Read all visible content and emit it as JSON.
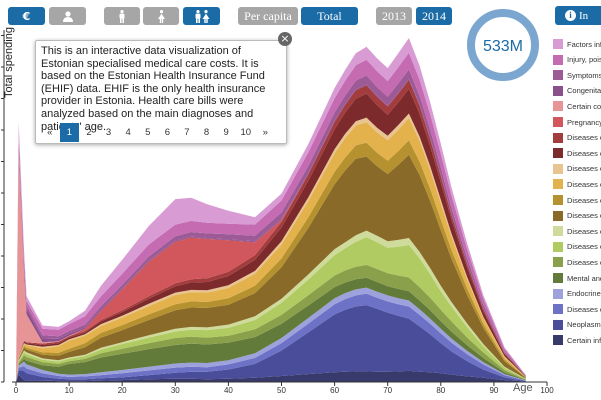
{
  "toolbar": {
    "currency_icon": "euro-icon",
    "person_icon": "user-icon",
    "male_icon": "male-icon",
    "female_icon": "female-icon",
    "both_icon": "male-female-icon",
    "per_capita_label": "Per capita",
    "total_label": "Total",
    "year_2013_label": "2013",
    "year_2014_label": "2014",
    "info_label": "In"
  },
  "total_badge": {
    "value": "533M"
  },
  "popup": {
    "text": "This is an interactive data visualization of Estonian specialised medical care costs. It is based on the Estonian Health Insurance Fund (EHIF) data. EHIF is the only health insurance provider in Estonia. Health care bills were analyzed based on the main diagnoses and patients' age.",
    "prev": "«",
    "next": "»",
    "pages": [
      "1",
      "2",
      "3",
      "4",
      "5",
      "6",
      "7",
      "8",
      "9",
      "10"
    ],
    "active_page": "1",
    "close": "×"
  },
  "legend": [
    {
      "label": "Factors infl",
      "color": "#d99bd4"
    },
    {
      "label": "Injury, pois",
      "color": "#c46bb2"
    },
    {
      "label": "Symptoms",
      "color": "#9c5a96"
    },
    {
      "label": "Congenital",
      "color": "#8a4f8c"
    },
    {
      "label": "Certain con",
      "color": "#e69496"
    },
    {
      "label": "Pregnancy,",
      "color": "#d1575c"
    },
    {
      "label": "Diseases o",
      "color": "#a33c3d"
    },
    {
      "label": "Diseases o",
      "color": "#7d2a2d"
    },
    {
      "label": "Diseases o",
      "color": "#e8c491"
    },
    {
      "label": "Diseases o",
      "color": "#e3b24d"
    },
    {
      "label": "Diseases o",
      "color": "#b5922f"
    },
    {
      "label": "Diseases o",
      "color": "#8a6a29"
    },
    {
      "label": "Diseases o",
      "color": "#cfdb9a"
    },
    {
      "label": "Diseases o",
      "color": "#b0cb62"
    },
    {
      "label": "Diseases o",
      "color": "#8ba04a"
    },
    {
      "label": "Mental and",
      "color": "#627a3a"
    },
    {
      "label": "Endocrine,",
      "color": "#9ea2dc"
    },
    {
      "label": "Diseases o",
      "color": "#6d72c7"
    },
    {
      "label": "Neoplasms",
      "color": "#4a4e9a"
    },
    {
      "label": "Certain infe",
      "color": "#373a6b"
    }
  ],
  "chart_data": {
    "type": "area",
    "stacked": true,
    "ylabel": "Total spending",
    "xlabel": "Age",
    "xlim": [
      0,
      100
    ],
    "x_ticks": [
      0,
      10,
      20,
      30,
      40,
      50,
      60,
      70,
      80,
      90,
      100
    ],
    "x": [
      0,
      0.5,
      1.5,
      2,
      5,
      8,
      10,
      13,
      16,
      20,
      25,
      30,
      33,
      36,
      40,
      45,
      50,
      55,
      60,
      62,
      64,
      66,
      68,
      70,
      72,
      74,
      76,
      78,
      80,
      82,
      85,
      88,
      92,
      96
    ],
    "series": [
      {
        "name": "Certain infe",
        "color": "#373a6b",
        "values": [
          0.0,
          1.6,
          0.4,
          0.3,
          0.3,
          0.2,
          0.2,
          0.2,
          0.3,
          0.4,
          0.6,
          0.7,
          0.7,
          0.6,
          0.7,
          0.9,
          1.3,
          1.7,
          2.1,
          2.2,
          2.3,
          2.3,
          2.2,
          2.2,
          2.3,
          2.4,
          2.2,
          2.1,
          1.9,
          1.6,
          1.2,
          0.9,
          0.4,
          0.1
        ]
      },
      {
        "name": "Neoplasms",
        "color": "#4a4e9a",
        "values": [
          0.0,
          1.0,
          2.0,
          1.6,
          0.8,
          0.5,
          0.4,
          0.4,
          0.5,
          0.6,
          0.9,
          1.3,
          1.5,
          1.6,
          2.0,
          3.0,
          5.5,
          9.0,
          12.5,
          13.4,
          14.0,
          14.3,
          13.6,
          12.8,
          12.0,
          11.3,
          9.8,
          8.2,
          6.5,
          5.0,
          3.3,
          1.8,
          0.6,
          0.1
        ]
      },
      {
        "name": "Diseases o",
        "color": "#6d72c7",
        "values": [
          0.0,
          0.5,
          1.0,
          1.0,
          0.8,
          0.6,
          0.5,
          0.6,
          0.7,
          0.9,
          1.0,
          1.1,
          1.1,
          1.0,
          1.1,
          1.3,
          1.6,
          1.9,
          2.2,
          2.3,
          2.4,
          2.5,
          2.4,
          2.4,
          2.5,
          2.6,
          2.5,
          2.3,
          2.1,
          1.9,
          1.5,
          1.1,
          0.5,
          0.1
        ]
      },
      {
        "name": "Endocrine,",
        "color": "#9ea2dc",
        "values": [
          0.0,
          0.5,
          1.0,
          0.9,
          0.7,
          0.5,
          0.5,
          0.5,
          0.6,
          0.7,
          0.8,
          0.9,
          0.9,
          0.9,
          0.9,
          1.0,
          1.1,
          1.2,
          1.3,
          1.3,
          1.3,
          1.3,
          1.3,
          1.3,
          1.3,
          1.3,
          1.2,
          1.1,
          1.0,
          0.9,
          0.7,
          0.5,
          0.2,
          0.05
        ]
      },
      {
        "name": "Mental and",
        "color": "#627a3a",
        "values": [
          0.0,
          0.3,
          0.6,
          0.8,
          1.0,
          1.5,
          2.3,
          2.6,
          3.2,
          3.5,
          3.8,
          4.0,
          4.1,
          4.0,
          3.8,
          3.5,
          3.1,
          2.7,
          2.4,
          2.3,
          2.2,
          2.1,
          2.1,
          2.0,
          2.0,
          2.0,
          1.9,
          1.8,
          1.6,
          1.5,
          1.2,
          0.9,
          0.4,
          0.1
        ]
      },
      {
        "name": "Diseases o",
        "color": "#8ba04a",
        "values": [
          0.0,
          0.3,
          0.8,
          0.8,
          0.7,
          0.6,
          0.6,
          0.7,
          0.9,
          1.1,
          1.3,
          1.5,
          1.5,
          1.5,
          1.5,
          1.7,
          1.9,
          2.2,
          2.5,
          2.6,
          2.7,
          2.8,
          2.8,
          2.8,
          2.9,
          3.0,
          2.9,
          2.7,
          2.5,
          2.2,
          1.7,
          1.2,
          0.5,
          0.1
        ]
      },
      {
        "name": "Diseases o",
        "color": "#b0cb62",
        "values": [
          0.0,
          0.3,
          0.6,
          0.6,
          0.5,
          0.5,
          0.5,
          0.6,
          0.8,
          1.0,
          1.2,
          1.4,
          1.5,
          1.6,
          1.7,
          2.0,
          2.6,
          3.4,
          4.4,
          4.8,
          5.4,
          6.0,
          5.8,
          5.5,
          6.2,
          7.0,
          6.2,
          5.1,
          4.0,
          3.2,
          2.2,
          1.3,
          0.5,
          0.1
        ]
      },
      {
        "name": "Diseases o",
        "color": "#cfdb9a",
        "values": [
          0.0,
          0.2,
          0.4,
          0.4,
          0.3,
          0.3,
          0.3,
          0.3,
          0.4,
          0.4,
          0.5,
          0.6,
          0.6,
          0.6,
          0.7,
          0.8,
          0.9,
          1.1,
          1.3,
          1.3,
          1.4,
          1.4,
          1.4,
          1.4,
          1.5,
          1.5,
          1.4,
          1.3,
          1.2,
          1.0,
          0.8,
          0.5,
          0.2,
          0.05
        ]
      },
      {
        "name": "Diseases o",
        "color": "#8a6a29",
        "values": [
          0.0,
          0.3,
          0.6,
          0.6,
          0.8,
          1.0,
          1.2,
          1.6,
          2.2,
          2.6,
          3.3,
          4.0,
          4.2,
          4.2,
          4.3,
          5.0,
          6.8,
          10.0,
          14.0,
          15.5,
          16.5,
          16.0,
          15.0,
          14.5,
          16.2,
          18.0,
          16.6,
          14.5,
          12.0,
          9.4,
          6.1,
          3.5,
          1.2,
          0.2
        ]
      },
      {
        "name": "Diseases o",
        "color": "#b5922f",
        "values": [
          0.0,
          0.2,
          0.4,
          0.4,
          0.5,
          0.6,
          0.7,
          0.9,
          1.0,
          1.1,
          1.2,
          1.3,
          1.3,
          1.3,
          1.4,
          1.6,
          1.9,
          2.3,
          2.7,
          2.8,
          2.9,
          3.0,
          2.9,
          2.9,
          3.0,
          3.1,
          2.9,
          2.6,
          2.3,
          1.9,
          1.4,
          0.9,
          0.4,
          0.1
        ]
      },
      {
        "name": "Diseases o",
        "color": "#e3b24d",
        "values": [
          0.0,
          0.2,
          0.4,
          0.5,
          0.9,
          1.4,
          1.7,
          1.6,
          1.5,
          1.6,
          1.8,
          2.0,
          2.0,
          2.0,
          2.2,
          2.6,
          3.0,
          3.5,
          4.0,
          4.2,
          4.3,
          4.4,
          4.4,
          4.4,
          4.6,
          4.8,
          4.5,
          4.0,
          3.5,
          2.8,
          2.0,
          1.2,
          0.5,
          0.1
        ]
      },
      {
        "name": "Diseases o",
        "color": "#e8c491",
        "values": [
          0.0,
          0.1,
          0.2,
          0.2,
          0.3,
          0.3,
          0.3,
          0.3,
          0.4,
          0.4,
          0.5,
          0.5,
          0.5,
          0.5,
          0.6,
          0.6,
          0.7,
          0.8,
          0.9,
          0.9,
          0.9,
          1.0,
          1.0,
          1.0,
          1.0,
          1.0,
          0.9,
          0.9,
          0.8,
          0.7,
          0.5,
          0.3,
          0.15,
          0.03
        ]
      },
      {
        "name": "Diseases o",
        "color": "#7d2a2d",
        "values": [
          0.0,
          0.1,
          0.3,
          0.3,
          0.4,
          0.4,
          0.4,
          0.4,
          0.6,
          0.8,
          1.1,
          1.4,
          1.6,
          1.8,
          2.0,
          2.4,
          3.0,
          3.6,
          4.3,
          4.6,
          4.9,
          5.2,
          4.9,
          4.5,
          4.9,
          5.3,
          4.9,
          4.3,
          3.7,
          3.0,
          2.0,
          1.2,
          0.5,
          0.1
        ]
      },
      {
        "name": "Diseases o",
        "color": "#a33c3d",
        "values": [
          0.0,
          0.1,
          0.2,
          0.2,
          0.3,
          0.3,
          0.3,
          0.3,
          0.3,
          0.4,
          0.5,
          0.6,
          0.7,
          0.8,
          0.9,
          1.0,
          1.2,
          1.4,
          1.6,
          1.7,
          1.8,
          1.8,
          1.8,
          1.8,
          1.9,
          2.0,
          1.8,
          1.6,
          1.4,
          1.1,
          0.8,
          0.5,
          0.2,
          0.05
        ]
      },
      {
        "name": "Pregnancy,",
        "color": "#d1575c",
        "values": [
          0.0,
          0.0,
          0.0,
          0.0,
          0.0,
          0.0,
          0.0,
          0.5,
          2.0,
          4.5,
          7.5,
          9.0,
          9.0,
          8.5,
          6.8,
          2.8,
          0.4,
          0.0,
          0.0,
          0.0,
          0.0,
          0.0,
          0.0,
          0.0,
          0.0,
          0.0,
          0.0,
          0.0,
          0.0,
          0.0,
          0.0,
          0.0,
          0.0,
          0.0
        ]
      },
      {
        "name": "Certain con",
        "color": "#e69496",
        "values": [
          0.0,
          44.0,
          15.0,
          6.0,
          0.3,
          0.1,
          0.1,
          0.0,
          0.0,
          0.0,
          0.0,
          0.0,
          0.0,
          0.0,
          0.0,
          0.0,
          0.0,
          0.0,
          0.0,
          0.0,
          0.0,
          0.0,
          0.0,
          0.0,
          0.0,
          0.0,
          0.0,
          0.0,
          0.0,
          0.0,
          0.0,
          0.0,
          0.0,
          0.0
        ]
      },
      {
        "name": "Congenital",
        "color": "#8a4f8c",
        "values": [
          0.0,
          2.0,
          1.6,
          1.2,
          0.8,
          0.5,
          0.4,
          0.3,
          0.3,
          0.2,
          0.2,
          0.2,
          0.2,
          0.2,
          0.2,
          0.2,
          0.2,
          0.2,
          0.2,
          0.2,
          0.2,
          0.2,
          0.2,
          0.2,
          0.2,
          0.2,
          0.2,
          0.2,
          0.2,
          0.1,
          0.1,
          0.1,
          0.05,
          0.0
        ]
      },
      {
        "name": "Symptoms",
        "color": "#9c5a96",
        "values": [
          0.0,
          0.5,
          0.7,
          0.7,
          0.7,
          0.6,
          0.6,
          0.6,
          0.7,
          0.8,
          0.9,
          1.0,
          1.0,
          1.0,
          1.1,
          1.2,
          1.4,
          1.6,
          1.8,
          1.8,
          1.9,
          1.9,
          1.9,
          1.9,
          2.0,
          2.0,
          1.9,
          1.8,
          1.6,
          1.4,
          1.1,
          0.8,
          0.3,
          0.05
        ]
      },
      {
        "name": "Injury, pois",
        "color": "#c46bb2",
        "values": [
          0.0,
          0.4,
          0.8,
          1.0,
          1.4,
          1.4,
          1.5,
          1.8,
          2.1,
          2.4,
          2.6,
          2.5,
          2.4,
          2.3,
          2.3,
          2.4,
          2.6,
          2.9,
          3.1,
          3.2,
          3.3,
          3.4,
          3.4,
          3.4,
          3.5,
          3.6,
          3.5,
          3.3,
          3.0,
          2.6,
          2.0,
          1.4,
          0.6,
          0.1
        ]
      },
      {
        "name": "Factors infl",
        "color": "#d99bd4",
        "values": [
          0.0,
          3.5,
          1.8,
          1.0,
          0.7,
          0.6,
          0.6,
          1.2,
          2.3,
          3.0,
          4.0,
          5.5,
          5.0,
          4.0,
          2.8,
          1.6,
          1.5,
          1.8,
          2.2,
          2.3,
          2.6,
          2.8,
          2.8,
          2.8,
          3.0,
          3.2,
          3.0,
          2.6,
          2.2,
          1.8,
          1.2,
          0.7,
          0.3,
          0.05
        ]
      }
    ]
  }
}
